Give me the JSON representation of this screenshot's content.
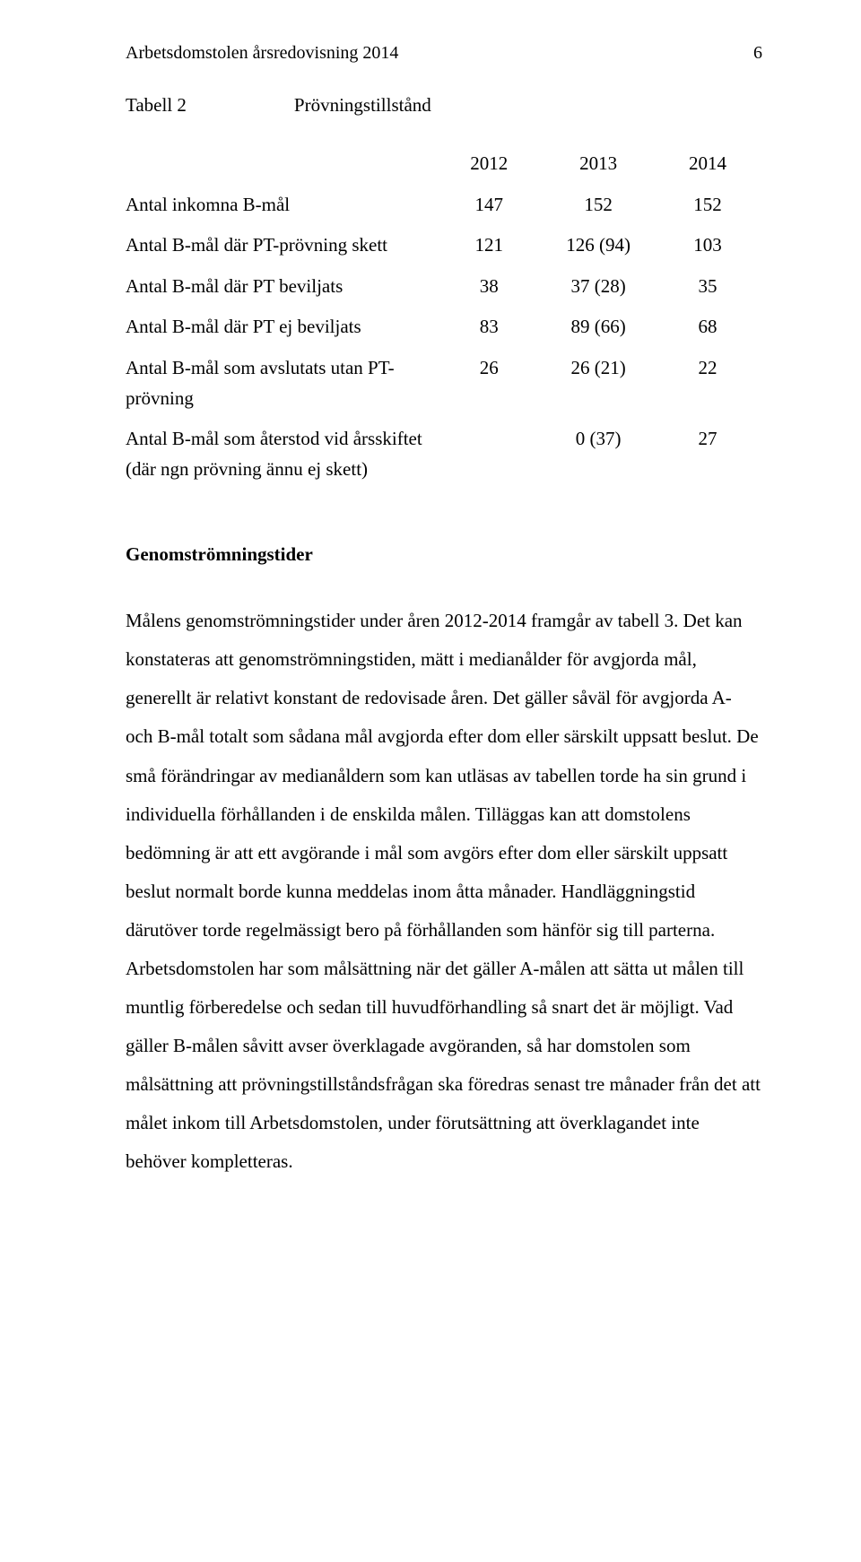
{
  "header": {
    "title": "Arbetsdomstolen årsredovisning 2014",
    "page_number": "6"
  },
  "table": {
    "label": "Tabell 2",
    "title": "Prövningstillstånd",
    "year_headers": [
      "2012",
      "2013",
      "2014"
    ],
    "rows": [
      {
        "label": "Antal inkomna B-mål",
        "c1": "147",
        "c2": "152",
        "c3": "152"
      },
      {
        "label": "Antal B-mål där PT-prövning skett",
        "c1": "121",
        "c2": "126 (94)",
        "c3": "103"
      },
      {
        "label": "Antal B-mål där PT beviljats",
        "c1": "38",
        "c2": "37 (28)",
        "c3": "35"
      },
      {
        "label": "Antal B-mål där PT ej beviljats",
        "c1": "83",
        "c2": "89 (66)",
        "c3": "68"
      },
      {
        "label": "Antal B-mål som avslutats utan PT-prövning",
        "c1": "26",
        "c2": "26 (21)",
        "c3": "22"
      },
      {
        "label": "Antal B-mål som återstod vid årsskiftet (där ngn prövning ännu ej skett)",
        "c1": "",
        "c2": "0 (37)",
        "c3": "27"
      }
    ]
  },
  "section_heading": "Genomströmningstider",
  "body": "Målens genomströmningstider under åren 2012-2014 framgår av tabell 3. Det kan konstateras att genomströmningstiden, mätt i medianålder för avgjorda mål, generellt är relativt konstant de redovisade åren. Det gäller såväl för avgjorda A- och B-mål totalt som sådana mål avgjorda efter dom eller särskilt uppsatt beslut. De små förändringar av medianåldern som kan utläsas av tabellen torde ha sin grund i individuella förhållanden i de enskilda målen. Tilläggas kan att domstolens bedömning är att ett avgörande i mål som avgörs efter dom eller särskilt uppsatt beslut normalt borde kunna meddelas inom åtta månader. Handläggningstid därutöver torde regelmässigt bero på förhållanden som hänför sig till parterna. Arbetsdomstolen har som målsättning när det gäller A-målen att sätta ut målen till muntlig förberedelse och sedan till huvudförhandling så snart det är möjligt. Vad gäller B-målen såvitt avser överklagade avgöranden, så har domstolen som målsättning att prövningstillståndsfrågan ska föredras senast tre månader från det att målet inkom till Arbetsdomstolen, under förutsättning att överklagandet inte behöver kompletteras."
}
